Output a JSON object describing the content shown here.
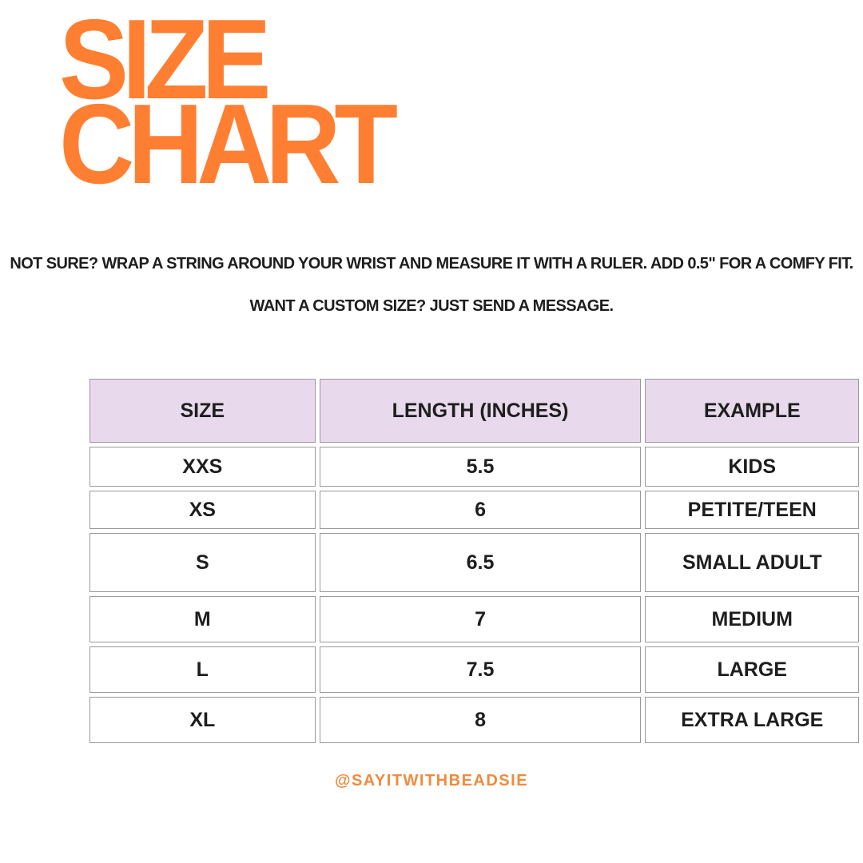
{
  "header": {
    "title": [
      "SIZE",
      "CHART"
    ]
  },
  "intro": [
    "NOT SURE?  WRAP A STRING AROUND YOUR WRIST AND MEASURE IT WITH A RULER. ADD 0.5\" FOR A COMFY FIT.",
    "WANT A CUSTOM SIZE? JUST SEND A MESSAGE."
  ],
  "table": {
    "header": [
      "SIZE",
      "LENGTH (INCHES)",
      "EXAMPLE"
    ],
    "rows": [
      [
        "XXS",
        "5.5",
        "KIDS"
      ],
      [
        "XS",
        "6",
        "PETITE/TEEN"
      ],
      [
        "S",
        "6.5",
        "SMALL ADULT"
      ],
      [
        "M",
        "7",
        "MEDIUM"
      ],
      [
        "L",
        "7.5",
        "LARGE"
      ],
      [
        "XL",
        "8",
        "EXTRA LARGE"
      ]
    ]
  },
  "footer": {
    "handle": "@SAYITWITHBEADSIE"
  }
}
